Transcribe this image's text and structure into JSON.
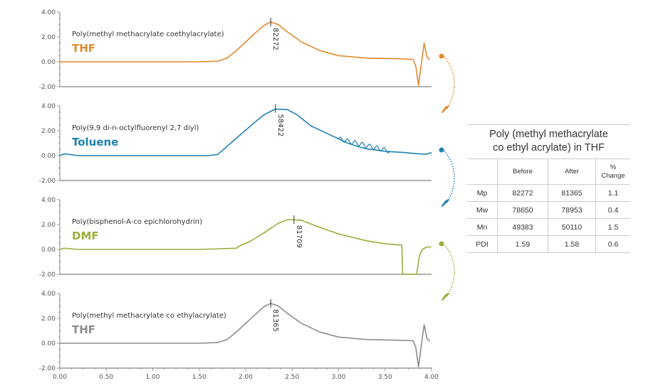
{
  "chart_data": {
    "type": "line",
    "x_axis": {
      "range": [
        0,
        4
      ],
      "ticks": [
        "0.00",
        "0.50",
        "1.00",
        "1.50",
        "2.00",
        "2.50",
        "3.00",
        "3.50",
        "4.00"
      ]
    },
    "y_axis": {
      "range": [
        -2,
        4
      ],
      "ticks": [
        "4.00",
        "2.00",
        "0.00",
        "-2.00"
      ]
    },
    "panels": [
      {
        "compound": "Poly(methyl methacrylate coethylacrylate)",
        "solvent": "THF",
        "color": "#E08A2E",
        "peak_x": 2.27,
        "peak_y": 3.2,
        "peak_label": "82272",
        "points": [
          [
            0,
            0
          ],
          [
            1.5,
            0
          ],
          [
            1.7,
            0.05
          ],
          [
            1.8,
            0.3
          ],
          [
            1.9,
            0.9
          ],
          [
            2.0,
            1.6
          ],
          [
            2.1,
            2.3
          ],
          [
            2.2,
            2.95
          ],
          [
            2.27,
            3.2
          ],
          [
            2.35,
            3.0
          ],
          [
            2.45,
            2.4
          ],
          [
            2.6,
            1.6
          ],
          [
            2.8,
            0.9
          ],
          [
            3.0,
            0.5
          ],
          [
            3.3,
            0.3
          ],
          [
            3.6,
            0.25
          ],
          [
            3.8,
            0.2
          ],
          [
            3.83,
            -0.3
          ],
          [
            3.86,
            -1.9
          ],
          [
            3.89,
            -0.2
          ],
          [
            3.92,
            1.5
          ],
          [
            3.95,
            0.4
          ],
          [
            3.98,
            0.15
          ]
        ]
      },
      {
        "compound": "Poly(9,9 di-n-octylfluorenyl 2,7 diyl)",
        "solvent": "Toluene",
        "color": "#1F82B0",
        "peak_x": 2.32,
        "peak_y": 3.8,
        "peak_label": "58422",
        "points": [
          [
            0,
            0
          ],
          [
            0.05,
            0.15
          ],
          [
            0.2,
            0
          ],
          [
            1.6,
            0
          ],
          [
            1.7,
            0.1
          ],
          [
            1.8,
            0.75
          ],
          [
            1.9,
            1.4
          ],
          [
            2.0,
            2.05
          ],
          [
            2.1,
            2.7
          ],
          [
            2.2,
            3.3
          ],
          [
            2.32,
            3.75
          ],
          [
            2.45,
            3.7
          ],
          [
            2.55,
            3.3
          ],
          [
            2.7,
            2.4
          ],
          [
            2.9,
            1.7
          ],
          [
            3.0,
            1.35
          ],
          [
            3.1,
            1.0
          ],
          [
            3.2,
            0.75
          ],
          [
            3.3,
            0.55
          ],
          [
            3.4,
            0.45
          ],
          [
            3.5,
            0.35
          ],
          [
            3.7,
            0.25
          ],
          [
            3.85,
            0.15
          ],
          [
            3.95,
            0.12
          ],
          [
            4.0,
            0.25
          ]
        ]
      },
      {
        "compound": "Poly(bisphenol-A-co epichlorohydrin)",
        "solvent": "DMF",
        "color": "#9AAE3A",
        "peak_x": 2.52,
        "peak_y": 2.4,
        "peak_label": "81709",
        "points": [
          [
            0,
            0
          ],
          [
            0.05,
            0.1
          ],
          [
            0.2,
            0
          ],
          [
            1.5,
            0
          ],
          [
            1.9,
            0.1
          ],
          [
            1.95,
            0.35
          ],
          [
            2.05,
            0.65
          ],
          [
            2.2,
            1.35
          ],
          [
            2.35,
            2.1
          ],
          [
            2.45,
            2.4
          ],
          [
            2.6,
            2.35
          ],
          [
            2.75,
            1.9
          ],
          [
            3.0,
            1.25
          ],
          [
            3.3,
            0.7
          ],
          [
            3.5,
            0.45
          ],
          [
            3.68,
            0.35
          ],
          [
            3.69,
            -2.0
          ],
          [
            3.84,
            -2.0
          ],
          [
            3.87,
            -0.5
          ],
          [
            3.9,
            0
          ],
          [
            3.95,
            0.2
          ],
          [
            4.0,
            0.2
          ]
        ]
      },
      {
        "compound": "Poly(methyl methacrylate co ethylacrylate)",
        "solvent": "THF",
        "color": "#8C8C8C",
        "peak_x": 2.27,
        "peak_y": 3.2,
        "peak_label": "81365",
        "points": [
          [
            0,
            0
          ],
          [
            1.5,
            0
          ],
          [
            1.7,
            0.05
          ],
          [
            1.8,
            0.3
          ],
          [
            1.9,
            0.9
          ],
          [
            2.0,
            1.6
          ],
          [
            2.1,
            2.3
          ],
          [
            2.2,
            2.95
          ],
          [
            2.27,
            3.2
          ],
          [
            2.35,
            3.0
          ],
          [
            2.45,
            2.4
          ],
          [
            2.6,
            1.6
          ],
          [
            2.8,
            0.9
          ],
          [
            3.0,
            0.5
          ],
          [
            3.3,
            0.3
          ],
          [
            3.6,
            0.25
          ],
          [
            3.8,
            0.2
          ],
          [
            3.83,
            -0.3
          ],
          [
            3.86,
            -1.9
          ],
          [
            3.89,
            -0.2
          ],
          [
            3.92,
            1.5
          ],
          [
            3.95,
            0.4
          ],
          [
            3.98,
            0.15
          ]
        ]
      }
    ],
    "annotations": [
      "curved dotted arrows linking each panel to the next"
    ]
  },
  "table": {
    "title_line1": "Poly (methyl methacrylate",
    "title_line2": "co ethyl acrylate) in THF",
    "headers": [
      "",
      "Before",
      "After",
      "%",
      "Change"
    ],
    "rows": [
      {
        "label": "Mp",
        "before": "82272",
        "after": "81365",
        "change": "1.1"
      },
      {
        "label": "Mw",
        "before": "78650",
        "after": "78953",
        "change": "0.4"
      },
      {
        "label": "Mn",
        "before": "49383",
        "after": "50110",
        "change": "1.5"
      },
      {
        "label": "PDI",
        "before": "1.59",
        "after": "1.58",
        "change": "0.6"
      }
    ]
  }
}
